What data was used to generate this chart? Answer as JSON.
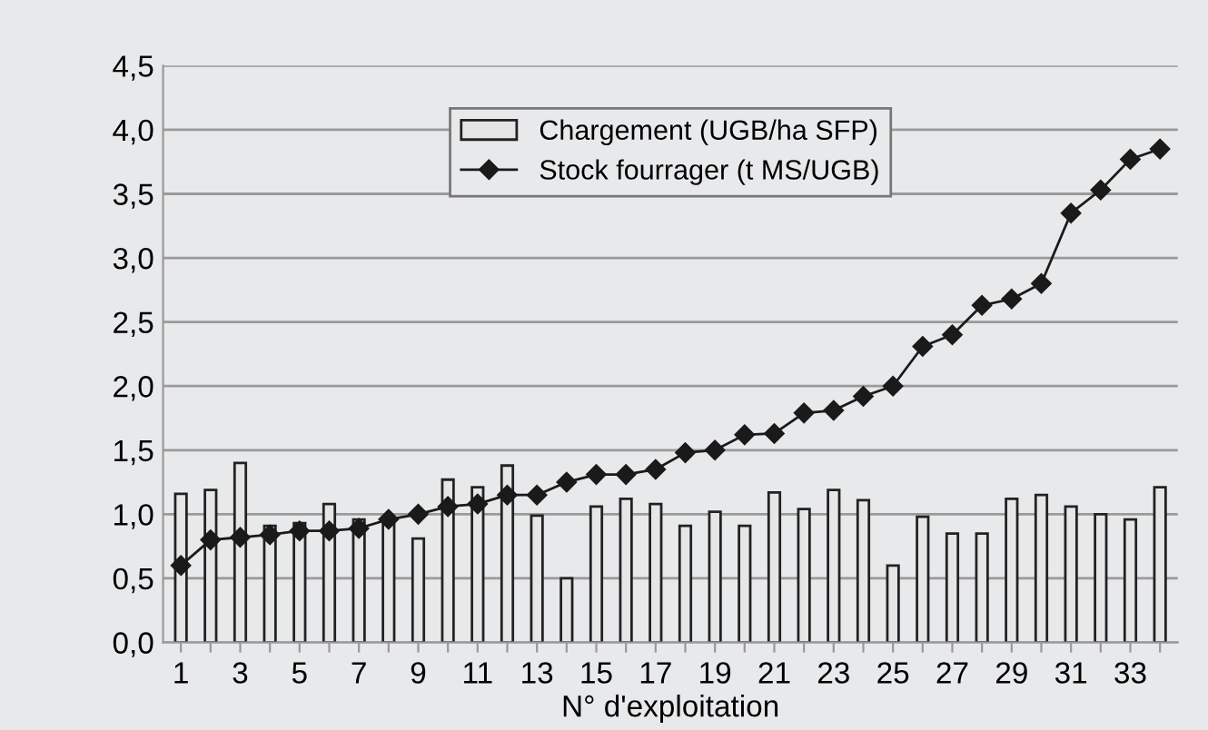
{
  "chart_data": {
    "type": "bar",
    "xlabel": "N° d'exploitation",
    "categories": [
      "1",
      null,
      "3",
      null,
      "5",
      null,
      "7",
      null,
      "9",
      null,
      "11",
      null,
      "13",
      null,
      "15",
      null,
      "17",
      null,
      "19",
      null,
      "21",
      null,
      "23",
      null,
      "25",
      null,
      "27",
      null,
      "29",
      null,
      "31",
      null,
      "33",
      null
    ],
    "series": [
      {
        "name": "Chargement (UGB/ha SFP)",
        "color": "#e6e6e6",
        "values": [
          1.16,
          1.19,
          1.4,
          0.91,
          0.93,
          1.08,
          0.96,
          0.97,
          0.81,
          1.27,
          1.21,
          1.38,
          0.99,
          0.5,
          1.06,
          1.12,
          1.08,
          0.91,
          1.02,
          0.91,
          1.17,
          1.04,
          1.19,
          1.11,
          0.6,
          0.98,
          0.85,
          0.85,
          1.12,
          1.15,
          1.06,
          1.0,
          0.96,
          1.21
        ]
      },
      {
        "name": "Stock fourrager (t MS/UGB)",
        "type": "line",
        "color": "#1a1a1a",
        "marker": "diamond",
        "values": [
          0.6,
          0.8,
          0.82,
          0.84,
          0.87,
          0.87,
          0.89,
          0.96,
          1.0,
          1.06,
          1.08,
          1.15,
          1.15,
          1.25,
          1.31,
          1.31,
          1.35,
          1.48,
          1.5,
          1.62,
          1.63,
          1.79,
          1.81,
          1.92,
          2.0,
          2.31,
          2.4,
          2.63,
          2.68,
          2.8,
          3.35,
          3.53,
          3.77,
          3.85
        ]
      }
    ],
    "ylim": [
      0,
      4.5
    ],
    "yticks": [
      {
        "value": 0,
        "label": "0,0"
      },
      {
        "value": 0.5,
        "label": "0,5"
      },
      {
        "value": 1,
        "label": "1,0"
      },
      {
        "value": 1.5,
        "label": "1,5"
      },
      {
        "value": 2,
        "label": "2,0"
      },
      {
        "value": 2.5,
        "label": "2,5"
      },
      {
        "value": 3,
        "label": "3,0"
      },
      {
        "value": 3.5,
        "label": "3,5"
      },
      {
        "value": 4,
        "label": "4,0"
      },
      {
        "value": 4.5,
        "label": "4,5"
      }
    ],
    "grid": "y",
    "legend": "top"
  }
}
